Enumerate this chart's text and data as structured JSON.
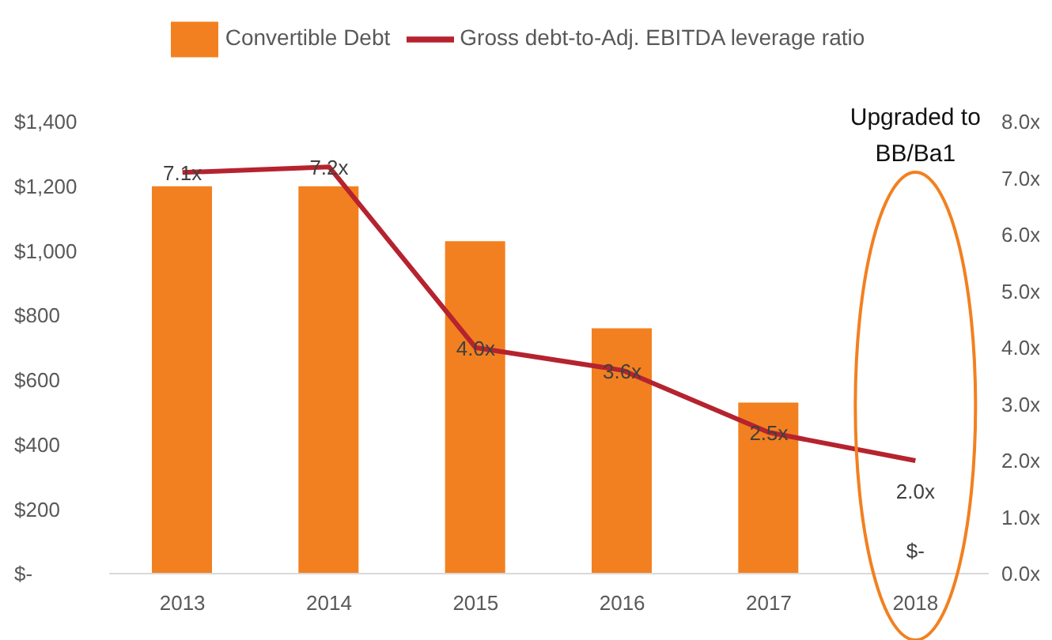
{
  "chart_data": {
    "type": "bar",
    "categories": [
      "2013",
      "2014",
      "2015",
      "2016",
      "2017",
      "2018"
    ],
    "series": [
      {
        "name": "Convertible Debt",
        "color": "#f28020",
        "values": [
          1200,
          1200,
          1030,
          760,
          530,
          0
        ],
        "value_labels": [
          null,
          null,
          null,
          null,
          null,
          "$-"
        ]
      },
      {
        "name": "Gross debt-to-Adj. EBITDA leverage ratio",
        "type": "line",
        "axis": "y2",
        "color": "#b5232f",
        "values": [
          7.1,
          7.2,
          4.0,
          3.6,
          2.5,
          2.0
        ],
        "value_labels": [
          "7.1x",
          "7.2x",
          "4.0x",
          "3.6x",
          "2.5x",
          "2.0x"
        ]
      }
    ],
    "ylim": [
      0,
      1400
    ],
    "yticks": [
      {
        "value": 0,
        "label": "$-"
      },
      {
        "value": 200,
        "label": "$200"
      },
      {
        "value": 400,
        "label": "$400"
      },
      {
        "value": 600,
        "label": "$600"
      },
      {
        "value": 800,
        "label": "$800"
      },
      {
        "value": 1000,
        "label": "$1,000"
      },
      {
        "value": 1200,
        "label": "$1,200"
      },
      {
        "value": 1400,
        "label": "$1,400"
      }
    ],
    "y2lim": [
      0,
      8
    ],
    "y2ticks": [
      {
        "value": 0,
        "label": "0.0x"
      },
      {
        "value": 1,
        "label": "1.0x"
      },
      {
        "value": 2,
        "label": "2.0x"
      },
      {
        "value": 3,
        "label": "3.0x"
      },
      {
        "value": 4,
        "label": "4.0x"
      },
      {
        "value": 5,
        "label": "5.0x"
      },
      {
        "value": 6,
        "label": "6.0x"
      },
      {
        "value": 7,
        "label": "7.0x"
      },
      {
        "value": 8,
        "label": "8.0x"
      }
    ],
    "annotations": [
      "Upgraded to BB/Ba1"
    ],
    "grid": false,
    "legend": "top",
    "marker": "none",
    "line_style": "solid"
  }
}
